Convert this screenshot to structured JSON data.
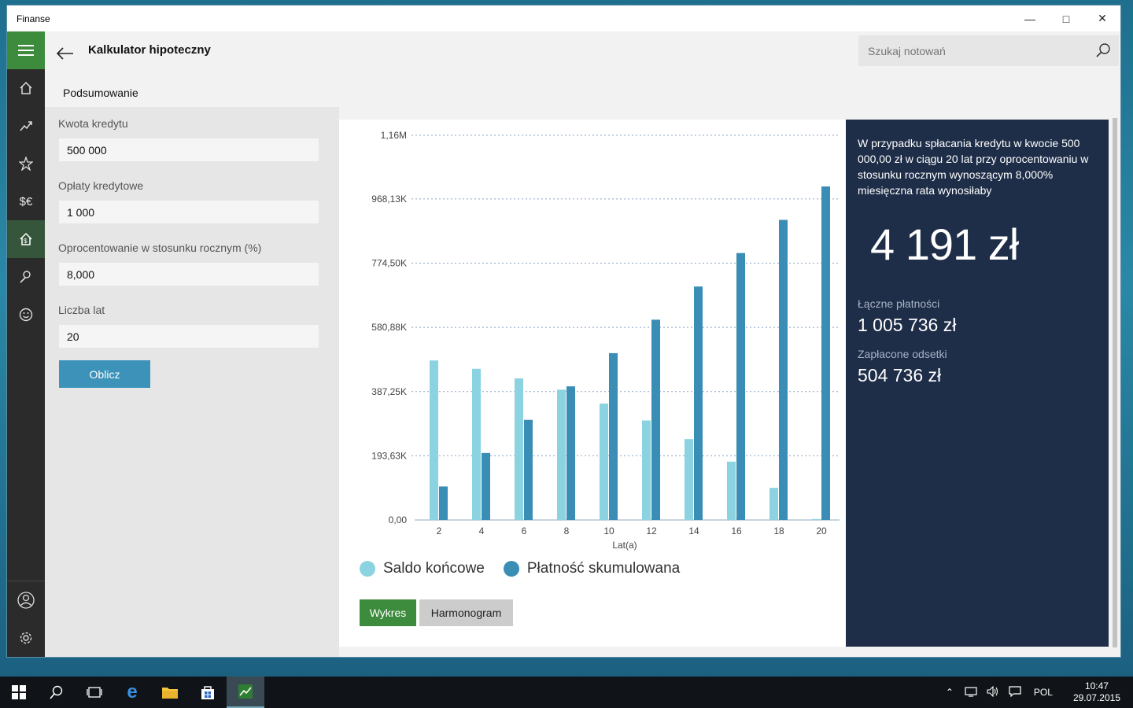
{
  "window": {
    "title": "Finanse"
  },
  "header": {
    "page_title": "Kalkulator hipoteczny",
    "section_title": "Podsumowanie",
    "search_placeholder": "Szukaj notowań"
  },
  "form": {
    "loan_amount_label": "Kwota kredytu",
    "loan_amount_value": "500 000",
    "fees_label": "Opłaty kredytowe",
    "fees_value": "1 000",
    "rate_label": "Oprocentowanie w stosunku rocznym (%)",
    "rate_value": "8,000",
    "years_label": "Liczba lat",
    "years_value": "20",
    "calculate_label": "Oblicz"
  },
  "summary": {
    "description": "W przypadku spłacania kredytu w kwocie 500 000,00 zł w ciągu 20 lat przy oprocentowaniu w stosunku rocznym wynoszącym 8,000% miesięczna rata wynosiłaby",
    "monthly_payment": "4 191 zł",
    "total_label": "Łączne płatności",
    "total_value": "1 005 736 zł",
    "interest_label": "Zapłacone odsetki",
    "interest_value": "504 736 zł"
  },
  "view_tabs": {
    "chart_label": "Wykres",
    "schedule_label": "Harmonogram"
  },
  "taskbar": {
    "language": "POL",
    "time": "10:47",
    "date": "29.07.2015"
  },
  "colors": {
    "accent_green": "#3d8b3d",
    "series_light": "#8bd3e0",
    "series_dark": "#3a8db5",
    "summary_bg": "#1e2d48"
  },
  "chart_data": {
    "type": "bar",
    "categories": [
      "2",
      "4",
      "6",
      "8",
      "10",
      "12",
      "14",
      "16",
      "18",
      "20"
    ],
    "xlabel": "Lat(a)",
    "ylabel": "",
    "ylim": [
      0,
      1160000
    ],
    "y_ticks": [
      "0,00",
      "193,63K",
      "387,25K",
      "580,88K",
      "774,50K",
      "968,13K",
      "1,16M"
    ],
    "y_tick_values": [
      0,
      193630,
      387250,
      580880,
      774500,
      968130,
      1160000
    ],
    "grid": true,
    "legend_position": "bottom-left",
    "series": [
      {
        "name": "Saldo końcowe",
        "color": "#8bd3e0",
        "values": [
          481000,
          456000,
          427000,
          393000,
          351000,
          300000,
          244000,
          176000,
          97000,
          3000
        ]
      },
      {
        "name": "Płatność skumulowana",
        "color": "#3a8db5",
        "values": [
          101000,
          202000,
          302000,
          403000,
          503000,
          604000,
          704000,
          805000,
          905000,
          1005736
        ]
      }
    ]
  }
}
